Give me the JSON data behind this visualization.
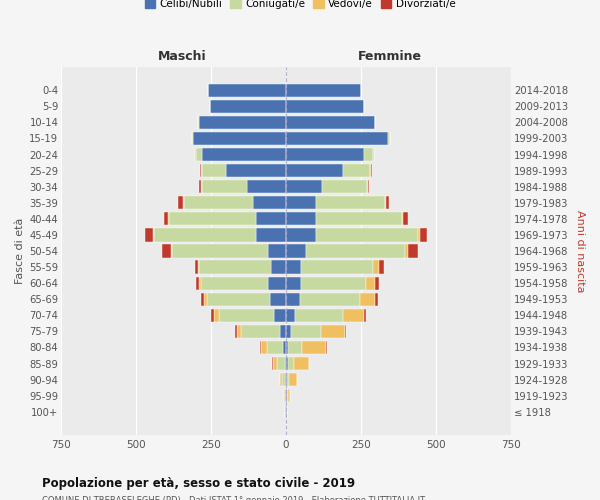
{
  "age_groups": [
    "0-4",
    "5-9",
    "10-14",
    "15-19",
    "20-24",
    "25-29",
    "30-34",
    "35-39",
    "40-44",
    "45-49",
    "50-54",
    "55-59",
    "60-64",
    "65-69",
    "70-74",
    "75-79",
    "80-84",
    "85-89",
    "90-94",
    "95-99",
    "100+"
  ],
  "birth_years": [
    "2014-2018",
    "2009-2013",
    "2004-2008",
    "1999-2003",
    "1994-1998",
    "1989-1993",
    "1984-1988",
    "1979-1983",
    "1974-1978",
    "1969-1973",
    "1964-1968",
    "1959-1963",
    "1954-1958",
    "1949-1953",
    "1944-1948",
    "1939-1943",
    "1934-1938",
    "1929-1933",
    "1924-1928",
    "1919-1923",
    "≤ 1918"
  ],
  "male": {
    "celibe": [
      260,
      255,
      290,
      310,
      280,
      200,
      130,
      110,
      100,
      100,
      60,
      50,
      60,
      55,
      40,
      20,
      10,
      5,
      3,
      2,
      2
    ],
    "coniugato": [
      0,
      0,
      2,
      5,
      20,
      80,
      150,
      230,
      290,
      340,
      320,
      240,
      225,
      210,
      185,
      130,
      55,
      25,
      10,
      2,
      0
    ],
    "vedovo": [
      0,
      0,
      0,
      0,
      2,
      2,
      2,
      5,
      3,
      5,
      5,
      5,
      5,
      10,
      15,
      15,
      20,
      15,
      8,
      2,
      0
    ],
    "divorziato": [
      0,
      0,
      0,
      0,
      2,
      5,
      8,
      15,
      15,
      25,
      30,
      8,
      10,
      10,
      10,
      5,
      2,
      2,
      0,
      0,
      0
    ]
  },
  "female": {
    "nubile": [
      250,
      260,
      295,
      340,
      260,
      190,
      120,
      100,
      100,
      100,
      65,
      50,
      50,
      45,
      30,
      15,
      8,
      5,
      3,
      3,
      2
    ],
    "coniugata": [
      0,
      0,
      2,
      5,
      30,
      90,
      150,
      230,
      285,
      340,
      330,
      240,
      215,
      200,
      160,
      100,
      45,
      20,
      8,
      3,
      0
    ],
    "vedova": [
      0,
      0,
      0,
      0,
      2,
      2,
      2,
      3,
      5,
      5,
      10,
      20,
      30,
      50,
      70,
      80,
      80,
      50,
      25,
      8,
      2
    ],
    "divorziata": [
      0,
      0,
      0,
      0,
      2,
      3,
      5,
      10,
      15,
      25,
      35,
      15,
      15,
      10,
      8,
      5,
      3,
      2,
      2,
      0,
      0
    ]
  },
  "colors": {
    "celibe": "#4a72b0",
    "coniugato": "#c5d9a0",
    "vedovo": "#f0c060",
    "divorziato": "#c0392b"
  },
  "title": "Popolazione per età, sesso e stato civile - 2019",
  "xlabel_left": "Maschi",
  "xlabel_right": "Femmine",
  "ylabel_left": "Fasce di età",
  "ylabel_right": "Anni di nascita",
  "xlim": 750,
  "legend_labels": [
    "Celibi/Nubili",
    "Coniugati/e",
    "Vedovi/e",
    "Divorziati/e"
  ],
  "bg_color": "#f5f5f5",
  "plot_bg": "#ebebeb",
  "maschi_color": "#333333",
  "femmine_color": "#333333",
  "right_label_color": "#c0392b"
}
